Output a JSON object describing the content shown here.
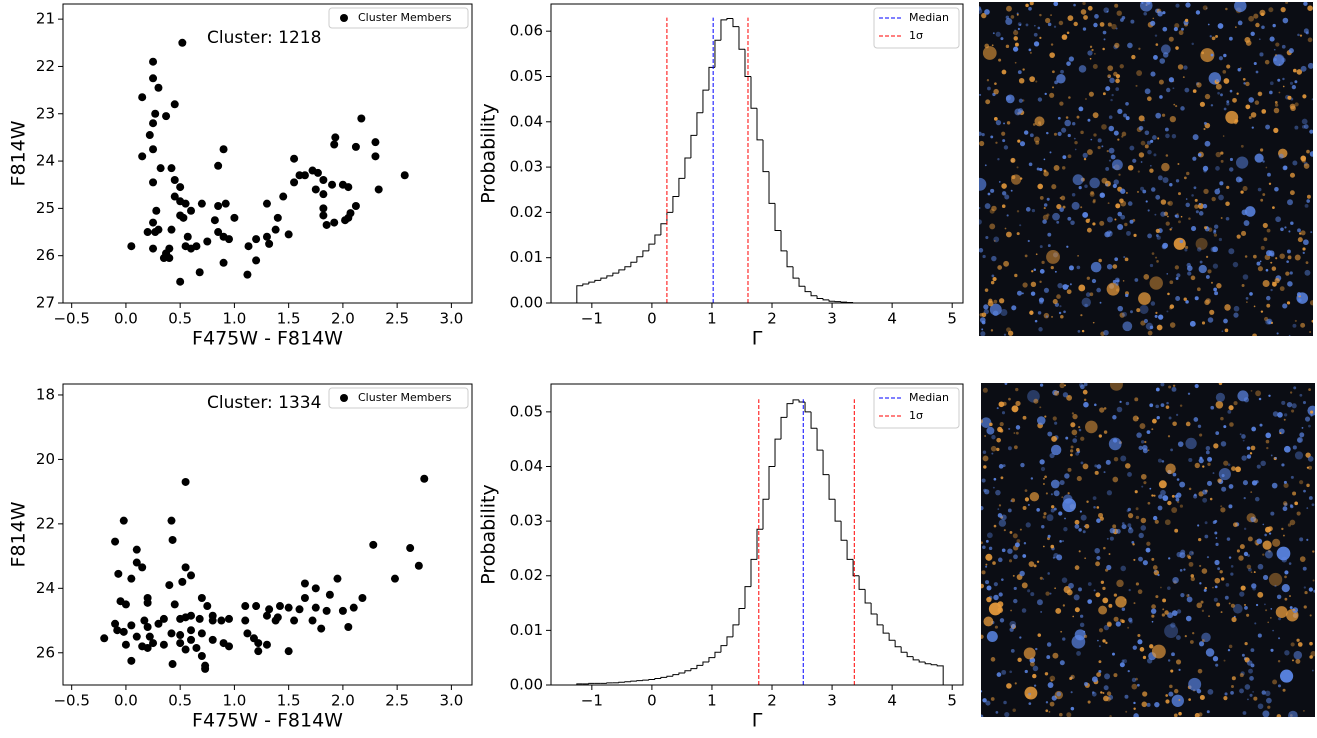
{
  "chart_data": [
    {
      "type": "scatter",
      "annotation": "Cluster: 1218",
      "xlabel": "F475W - F814W",
      "ylabel": "F814W",
      "xlim": [
        -0.58,
        3.19
      ],
      "ylim": [
        20.68,
        27
      ],
      "invert_y": true,
      "xticks": [
        {
          "value": -0.5,
          "label": "−0.5"
        },
        {
          "value": 0,
          "label": "0.0"
        },
        0.5,
        {
          "value": 1,
          "label": "1.0"
        },
        1.5,
        {
          "value": 2,
          "label": "2.0"
        },
        2.5,
        {
          "value": 3,
          "label": "3.0"
        }
      ],
      "yticks": [
        21,
        22,
        23,
        24,
        25,
        26,
        27
      ],
      "legend": "upper right",
      "series": [
        {
          "name": "Cluster Members",
          "color": "#000000",
          "x": [
            0.52,
            0.25,
            0.25,
            0.3,
            0.15,
            0.45,
            0.27,
            0.37,
            0.25,
            0.22,
            0.25,
            0.9,
            0.15,
            0.32,
            0.42,
            0.85,
            0.45,
            0.25,
            0.5,
            0.45,
            0.5,
            0.55,
            0.92,
            0.85,
            0.7,
            0.6,
            0.28,
            0.5,
            0.53,
            1.0,
            0.82,
            0.25,
            0.3,
            0.2,
            0.27,
            0.42,
            0.57,
            0.85,
            0.9,
            0.95,
            0.75,
            0.65,
            0.55,
            0.6,
            0.4,
            0.25,
            0.05,
            1.13,
            1.2,
            1.32,
            1.3,
            1.5,
            1.38,
            1.4,
            1.45,
            1.3,
            1.55,
            1.6,
            1.72,
            1.77,
            1.82,
            1.55,
            1.65,
            1.75,
            1.9,
            1.82,
            1.82,
            1.82,
            1.85,
            1.92,
            2.02,
            2.05,
            2.07,
            2.12,
            2.05,
            2.0,
            2.12,
            1.93,
            1.92,
            2.17,
            2.3,
            2.3,
            2.33,
            2.57,
            0.35,
            0.4,
            0.9,
            0.68,
            1.12,
            1.2,
            0.5,
            0.37
          ],
          "values": [
            21.5,
            21.9,
            22.25,
            22.45,
            22.65,
            22.8,
            23.0,
            23.05,
            23.2,
            23.45,
            23.75,
            23.75,
            23.9,
            24.15,
            24.15,
            24.1,
            24.4,
            24.45,
            24.55,
            24.75,
            24.85,
            24.9,
            24.9,
            24.95,
            24.9,
            25.05,
            25.05,
            25.15,
            25.2,
            25.2,
            25.25,
            25.3,
            25.45,
            25.5,
            25.5,
            25.45,
            25.6,
            25.5,
            25.6,
            25.65,
            25.7,
            25.8,
            25.8,
            25.85,
            25.85,
            25.85,
            25.8,
            25.8,
            25.65,
            25.75,
            25.6,
            25.55,
            25.45,
            25.2,
            24.75,
            24.9,
            24.45,
            24.3,
            24.2,
            24.25,
            24.4,
            23.95,
            24.3,
            24.6,
            24.5,
            24.7,
            25.0,
            25.15,
            25.35,
            25.3,
            25.25,
            25.2,
            25.1,
            24.95,
            24.55,
            24.5,
            23.7,
            23.5,
            23.65,
            23.1,
            23.6,
            23.9,
            24.6,
            24.3,
            26.05,
            26.05,
            26.15,
            26.35,
            26.4,
            26.1,
            26.55,
            25.95
          ]
        }
      ]
    },
    {
      "type": "histogram",
      "xlabel": "Γ",
      "ylabel": "Probability",
      "color": "#000000",
      "xlim": [
        -1.68,
        5.18
      ],
      "ylim": [
        0,
        0.066
      ],
      "xticks": [
        {
          "value": -1,
          "label": "−1"
        },
        0,
        1,
        2,
        3,
        4,
        5
      ],
      "yticks": [
        {
          "value": 0,
          "label": "0.00"
        },
        0.01,
        0.02,
        0.03,
        0.04,
        0.05,
        0.06
      ],
      "legend": "upper right",
      "bins": [
        -1.25,
        -1.15,
        -1.05,
        -0.95,
        -0.85,
        -0.75,
        -0.65,
        -0.55,
        -0.45,
        -0.35,
        -0.25,
        -0.15,
        -0.05,
        0.05,
        0.15,
        0.25,
        0.35,
        0.45,
        0.55,
        0.65,
        0.75,
        0.85,
        0.95,
        1.05,
        1.15,
        1.25,
        1.35,
        1.45,
        1.55,
        1.65,
        1.75,
        1.85,
        1.95,
        2.05,
        2.15,
        2.25,
        2.35,
        2.45,
        2.55,
        2.65,
        2.75,
        2.85,
        2.95,
        3.05,
        3.15,
        3.25,
        3.35,
        3.45,
        3.55,
        3.65,
        3.75,
        3.85,
        3.95,
        4.05,
        4.15,
        4.25,
        4.35,
        4.45,
        4.55,
        4.65,
        4.75,
        4.85,
        4.95
      ],
      "values": [
        0.0038,
        0.0042,
        0.0046,
        0.005,
        0.0055,
        0.006,
        0.0066,
        0.0073,
        0.008,
        0.009,
        0.0102,
        0.0115,
        0.013,
        0.015,
        0.0175,
        0.02,
        0.0235,
        0.0275,
        0.032,
        0.037,
        0.042,
        0.047,
        0.052,
        0.058,
        0.0625,
        0.0628,
        0.061,
        0.056,
        0.05,
        0.043,
        0.036,
        0.029,
        0.022,
        0.016,
        0.0115,
        0.008,
        0.0055,
        0.0037,
        0.0025,
        0.0016,
        0.001,
        0.0007,
        0.0004,
        0.0003,
        0.0002,
        0.0001,
        0,
        0,
        0,
        0,
        0,
        0,
        0,
        0,
        0,
        0,
        0,
        0,
        0,
        0,
        0,
        0
      ],
      "vline_height": 0.063,
      "vlines": [
        {
          "name": "Median",
          "color": "#0000ff",
          "x": [
            1.02
          ]
        },
        {
          "name": "1σ",
          "color": "#ff0000",
          "x": [
            0.25,
            1.6
          ]
        }
      ]
    },
    {
      "type": "scatter",
      "annotation": "Cluster: 1334",
      "xlabel": "F475W - F814W",
      "ylabel": "F814W",
      "xlim": [
        -0.58,
        3.19
      ],
      "ylim": [
        17.66,
        27.0
      ],
      "invert_y": true,
      "xticks": [
        {
          "value": -0.5,
          "label": "−0.5"
        },
        {
          "value": 0,
          "label": "0.0"
        },
        0.5,
        {
          "value": 1,
          "label": "1.0"
        },
        1.5,
        {
          "value": 2,
          "label": "2.0"
        },
        2.5,
        {
          "value": 3,
          "label": "3.0"
        }
      ],
      "yticks": [
        18,
        20,
        22,
        24,
        26
      ],
      "legend": "upper right",
      "series": [
        {
          "name": "Cluster Members",
          "color": "#000000",
          "x": [
            0.55,
            2.75,
            -0.02,
            0.1,
            0.42,
            0.43,
            -0.1,
            2.28,
            2.62,
            2.7,
            0.15,
            0.1,
            0.55,
            -0.07,
            0.6,
            0.05,
            0.52,
            0.4,
            2.48,
            1.75,
            1.65,
            1.95,
            1.88,
            1.65,
            0.2,
            0.2,
            0.45,
            0.0,
            0.7,
            -0.05,
            0.75,
            1.1,
            1.2,
            1.32,
            1.42,
            1.5,
            2.18,
            2.1,
            1.55,
            1.4,
            1.3,
            1.6,
            1.75,
            1.85,
            1.72,
            1.8,
            2.0,
            2.05,
            1.1,
            0.95,
            0.5,
            0.55,
            0.35,
            0.3,
            0.17,
            0.05,
            -0.1,
            -0.08,
            -0.02,
            0.1,
            0.2,
            0.22,
            0.42,
            0.5,
            0.6,
            0.7,
            0.6,
            0.8,
            0.9,
            0.95,
            1.12,
            1.18,
            1.22,
            1.3,
            0.0,
            0.15,
            0.2,
            0.25,
            0.35,
            0.5,
            0.55,
            0.65,
            0.7,
            0.73,
            0.73,
            0.43,
            0.05,
            -0.2,
            1.22,
            1.5,
            1.38,
            0.8,
            0.88,
            0.68,
            0.6,
            0.8
          ],
          "values": [
            20.7,
            20.6,
            21.9,
            22.8,
            21.9,
            22.5,
            22.55,
            22.65,
            22.75,
            23.3,
            23.35,
            23.2,
            23.35,
            23.55,
            23.6,
            23.7,
            23.8,
            23.9,
            23.7,
            24.0,
            23.85,
            23.7,
            24.2,
            24.3,
            24.3,
            24.45,
            24.5,
            24.5,
            24.3,
            24.4,
            24.55,
            24.55,
            24.55,
            24.65,
            24.55,
            24.6,
            24.3,
            24.6,
            25.0,
            24.9,
            24.85,
            24.65,
            24.6,
            24.7,
            25.0,
            25.25,
            24.7,
            25.2,
            25.0,
            24.95,
            24.95,
            24.9,
            24.95,
            25.1,
            25.0,
            25.15,
            25.1,
            25.3,
            25.35,
            25.5,
            25.2,
            25.5,
            25.4,
            25.45,
            25.3,
            25.4,
            25.6,
            25.6,
            25.7,
            25.8,
            25.4,
            25.55,
            25.7,
            25.75,
            25.75,
            25.8,
            25.85,
            25.7,
            25.75,
            25.7,
            25.9,
            25.85,
            26.1,
            26.4,
            26.5,
            26.35,
            26.25,
            25.55,
            25.95,
            25.95,
            25.0,
            25.0,
            25.0,
            24.95,
            24.85,
            24.85
          ]
        }
      ]
    },
    {
      "type": "histogram",
      "xlabel": "Γ",
      "ylabel": "Probability",
      "color": "#000000",
      "xlim": [
        -1.68,
        5.18
      ],
      "ylim": [
        0,
        0.0551
      ],
      "xticks": [
        {
          "value": -1,
          "label": "−1"
        },
        0,
        1,
        2,
        3,
        4,
        5
      ],
      "yticks": [
        {
          "value": 0,
          "label": "0.00"
        },
        0.01,
        0.02,
        0.03,
        0.04,
        0.05
      ],
      "legend": "upper right",
      "bins": [
        -1.25,
        -1.15,
        -1.05,
        -0.95,
        -0.85,
        -0.75,
        -0.65,
        -0.55,
        -0.45,
        -0.35,
        -0.25,
        -0.15,
        -0.05,
        0.05,
        0.15,
        0.25,
        0.35,
        0.45,
        0.55,
        0.65,
        0.75,
        0.85,
        0.95,
        1.05,
        1.15,
        1.25,
        1.35,
        1.45,
        1.55,
        1.65,
        1.75,
        1.85,
        1.95,
        2.05,
        2.15,
        2.25,
        2.35,
        2.45,
        2.55,
        2.65,
        2.75,
        2.85,
        2.95,
        3.05,
        3.15,
        3.25,
        3.35,
        3.45,
        3.55,
        3.65,
        3.75,
        3.85,
        3.95,
        4.05,
        4.15,
        4.25,
        4.35,
        4.45,
        4.55,
        4.65,
        4.75,
        4.85
      ],
      "values": [
        0.0002,
        0.0002,
        0.0003,
        0.0003,
        0.0003,
        0.0004,
        0.0004,
        0.0005,
        0.0006,
        0.0007,
        0.0008,
        0.0009,
        0.001,
        0.0012,
        0.0014,
        0.0016,
        0.0019,
        0.0022,
        0.0026,
        0.003,
        0.0036,
        0.0042,
        0.005,
        0.006,
        0.0072,
        0.0088,
        0.011,
        0.014,
        0.018,
        0.023,
        0.0285,
        0.034,
        0.04,
        0.045,
        0.049,
        0.0515,
        0.0522,
        0.0518,
        0.05,
        0.047,
        0.043,
        0.0385,
        0.034,
        0.03,
        0.0265,
        0.023,
        0.02,
        0.0175,
        0.015,
        0.013,
        0.011,
        0.0095,
        0.0082,
        0.007,
        0.006,
        0.0052,
        0.0046,
        0.0042,
        0.0039,
        0.0037,
        0.0035
      ],
      "vline_height": 0.0523,
      "vlines": [
        {
          "name": "Median",
          "color": "#0000ff",
          "x": [
            2.52
          ]
        },
        {
          "name": "1σ",
          "color": "#ff0000",
          "x": [
            1.78,
            3.37
          ]
        }
      ]
    }
  ]
}
